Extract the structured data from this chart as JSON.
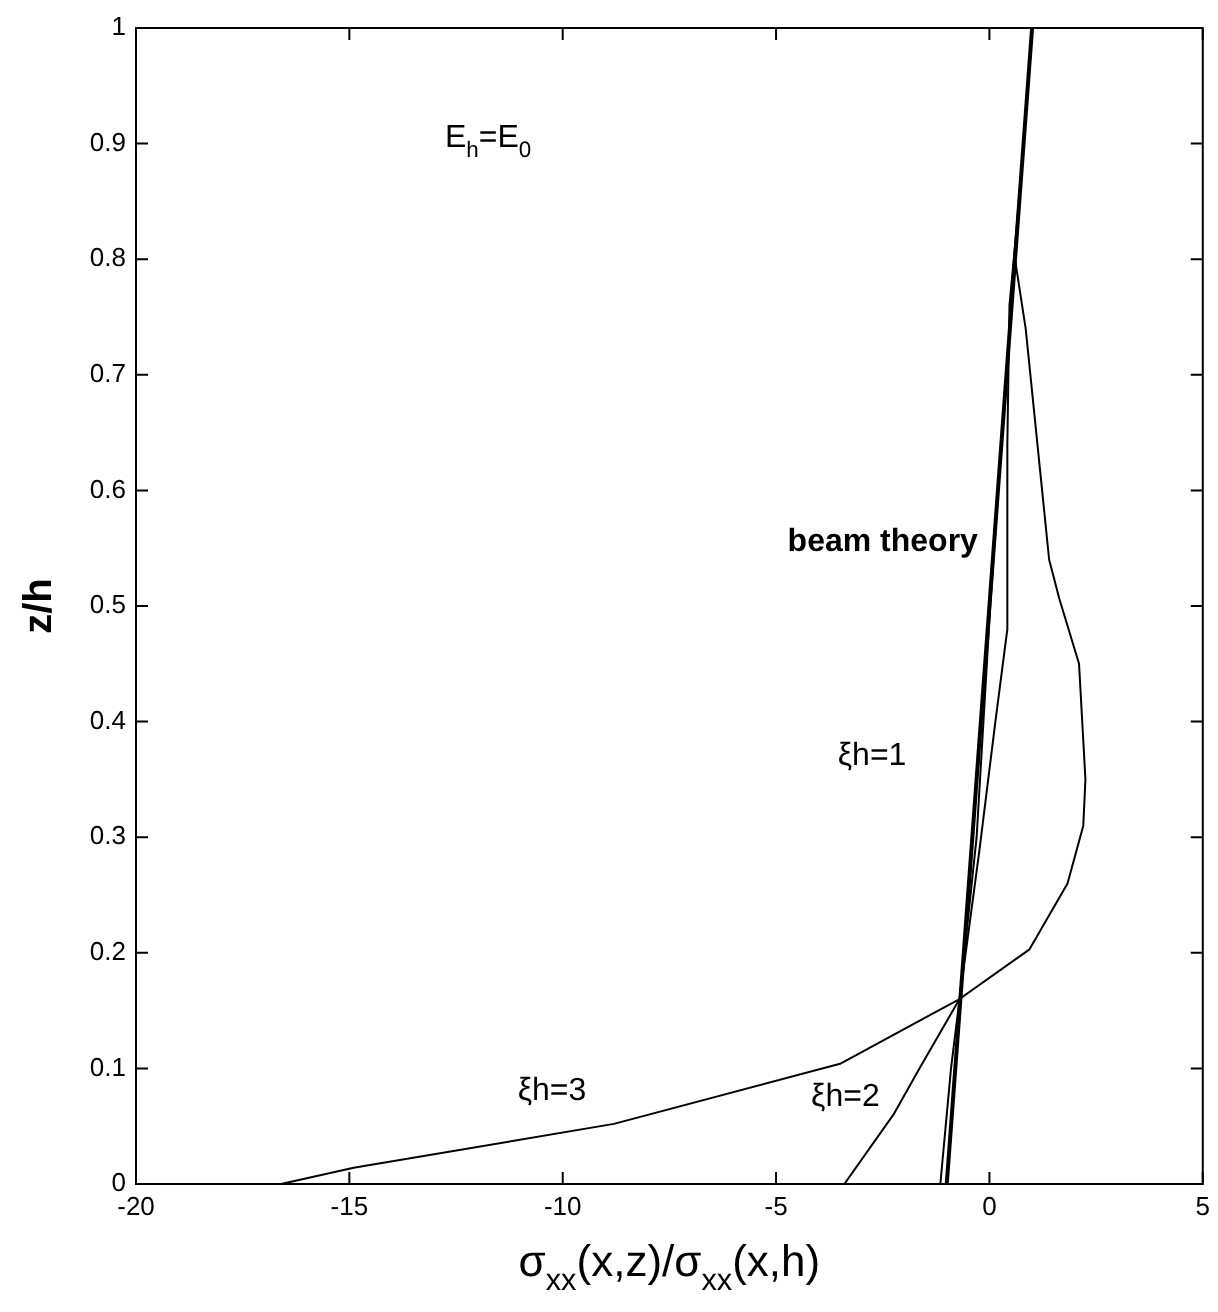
{
  "chart_data": {
    "type": "line",
    "xlabel": "σ$_{xx}$(x,z)/σ$_{xx}$(x,h)",
    "ylabel": "z/h",
    "xlim": [
      -20,
      5
    ],
    "xticks": [
      -20,
      -15,
      -10,
      -5,
      0,
      5
    ],
    "ylim": [
      0,
      1
    ],
    "yticks": [
      0,
      0.1,
      0.2,
      0.3,
      0.4,
      0.5,
      0.6,
      0.7,
      0.8,
      0.9,
      1
    ],
    "grid": false,
    "legend": false,
    "marker": "none",
    "line_style": "solid",
    "series": [
      {
        "name": "beam theory",
        "color": "#000000",
        "x": [
          -1,
          1
        ],
        "values": [
          0,
          1
        ]
      },
      {
        "name": "ξh=1",
        "color": "#000000",
        "x": [
          -1.15,
          -0.9,
          -0.7,
          -0.3,
          0.02,
          0.3,
          0.6,
          0.8,
          1
        ],
        "values": [
          0,
          0.1,
          0.16,
          0.3,
          0.5,
          0.65,
          0.8,
          0.9,
          1
        ]
      },
      {
        "name": "ξh=2",
        "color": "#000000",
        "x": [
          -3.4,
          -2.25,
          -1.64,
          -0.7,
          -0.23,
          0.14,
          0.42,
          0.42,
          0.47,
          0.62,
          0.8,
          1
        ],
        "values": [
          0,
          0.06,
          0.1,
          0.16,
          0.29,
          0.4,
          0.48,
          0.64,
          0.76,
          0.82,
          0.9,
          1
        ]
      },
      {
        "name": "ξh=3",
        "color": "#000000",
        "x": [
          -16.6,
          -14.9,
          -8.8,
          -3.5,
          -0.7,
          0.94,
          1.83,
          2.2,
          2.25,
          2.1,
          1.64,
          1.4,
          0.85,
          0.6,
          0.8,
          1
        ],
        "values": [
          0,
          0.014,
          0.052,
          0.104,
          0.16,
          0.203,
          0.26,
          0.31,
          0.35,
          0.45,
          0.506,
          0.54,
          0.74,
          0.8,
          0.9,
          1
        ]
      }
    ],
    "annotations": [
      "E$_{h}$=E$_{0}$"
    ]
  }
}
